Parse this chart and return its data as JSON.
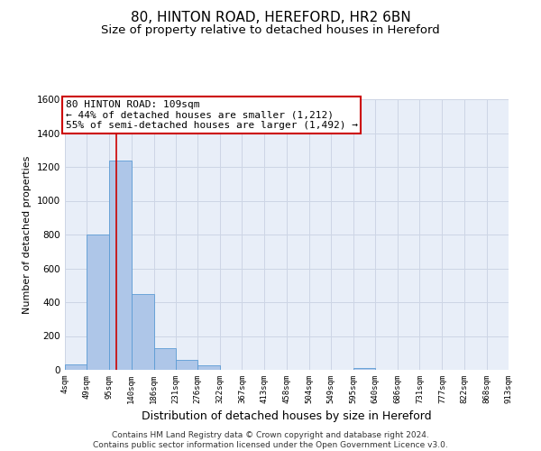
{
  "title1": "80, HINTON ROAD, HEREFORD, HR2 6BN",
  "title2": "Size of property relative to detached houses in Hereford",
  "xlabel": "Distribution of detached houses by size in Hereford",
  "ylabel": "Number of detached properties",
  "footnote": "Contains HM Land Registry data © Crown copyright and database right 2024.\nContains public sector information licensed under the Open Government Licence v3.0.",
  "bin_edges": [
    4,
    49,
    95,
    140,
    186,
    231,
    276,
    322,
    367,
    413,
    458,
    504,
    549,
    595,
    640,
    686,
    731,
    777,
    822,
    868,
    913
  ],
  "bar_heights": [
    30,
    800,
    1240,
    450,
    130,
    60,
    25,
    0,
    0,
    0,
    0,
    0,
    0,
    10,
    0,
    0,
    0,
    0,
    0,
    0
  ],
  "bar_color": "#aec6e8",
  "bar_edgecolor": "#5b9bd5",
  "vline_x": 109,
  "vline_color": "#cc0000",
  "annotation_text": "80 HINTON ROAD: 109sqm\n← 44% of detached houses are smaller (1,212)\n55% of semi-detached houses are larger (1,492) →",
  "annotation_box_edgecolor": "#cc0000",
  "ylim": [
    0,
    1600
  ],
  "yticks": [
    0,
    200,
    400,
    600,
    800,
    1000,
    1200,
    1400,
    1600
  ],
  "tick_labels": [
    "4sqm",
    "49sqm",
    "95sqm",
    "140sqm",
    "186sqm",
    "231sqm",
    "276sqm",
    "322sqm",
    "367sqm",
    "413sqm",
    "458sqm",
    "504sqm",
    "549sqm",
    "595sqm",
    "640sqm",
    "686sqm",
    "731sqm",
    "777sqm",
    "822sqm",
    "868sqm",
    "913sqm"
  ],
  "grid_color": "#cdd5e5",
  "background_color": "#e8eef8",
  "title1_fontsize": 11,
  "title2_fontsize": 9.5,
  "xlabel_fontsize": 9,
  "ylabel_fontsize": 8,
  "annotation_fontsize": 8,
  "footnote_fontsize": 6.5
}
